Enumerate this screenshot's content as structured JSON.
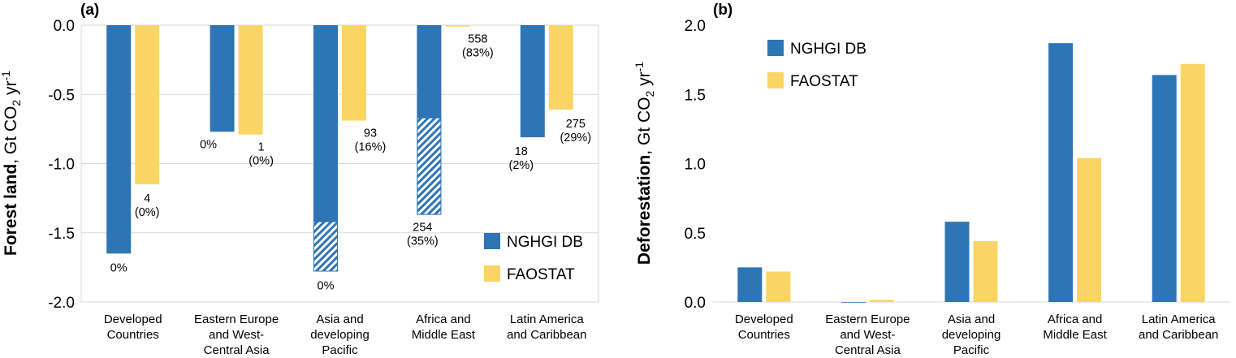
{
  "colors": {
    "nghgi": "#2e75b6",
    "faostat": "#f9d566",
    "grid": "#d9d9d9",
    "hatch": "#2e75b6"
  },
  "chart_data": [
    {
      "panel": "(a)",
      "type": "bar",
      "ylabel_bold": "Forest land",
      "ylabel_unit": ", Gt CO",
      "ylabel_sub": "2",
      "ylabel_tail": " yr",
      "ylabel_sup": "-1",
      "ylim": [
        -2.0,
        0.0
      ],
      "yticks": [
        0.0,
        -0.5,
        -1.0,
        -1.5,
        -2.0
      ],
      "ytick_labels": [
        "0.0",
        "-0.5",
        "-1.0",
        "-1.5",
        "-2.0"
      ],
      "grid": true,
      "legend_position": "bottom-right",
      "categories": [
        [
          "Developed",
          "Countries"
        ],
        [
          "Eastern Europe",
          "and West-",
          "Central Asia"
        ],
        [
          "Asia and",
          "developing",
          "Pacific"
        ],
        [
          "Africa and",
          "Middle East"
        ],
        [
          "Latin America",
          "and Caribbean"
        ]
      ],
      "series": [
        {
          "name": "NGHGI DB",
          "values": [
            -1.65,
            -0.77,
            -1.78,
            -1.37,
            -0.81
          ],
          "hatched_from": [
            null,
            null,
            -1.42,
            -0.67,
            null
          ]
        },
        {
          "name": "FAOSTAT",
          "values": [
            -1.15,
            -0.79,
            -0.69,
            -0.01,
            -0.61
          ]
        }
      ],
      "annotations": [
        {
          "category": 0,
          "series": 0,
          "lines": [
            "0%"
          ]
        },
        {
          "category": 0,
          "series": 1,
          "lines": [
            "4",
            "(0%)"
          ]
        },
        {
          "category": 1,
          "series": 0,
          "lines": [
            "0%"
          ]
        },
        {
          "category": 1,
          "series": 1,
          "lines": [
            "1",
            "(0%)"
          ]
        },
        {
          "category": 2,
          "series": 0,
          "lines": [
            "0%"
          ]
        },
        {
          "category": 2,
          "series": 1,
          "lines": [
            "93",
            "(16%)"
          ]
        },
        {
          "category": 3,
          "series": 0,
          "lines": [
            "254",
            "(35%)"
          ]
        },
        {
          "category": 3,
          "series": 1,
          "lines": [
            "558",
            "(83%)"
          ]
        },
        {
          "category": 4,
          "series": 0,
          "lines": [
            "18",
            "(2%)"
          ]
        },
        {
          "category": 4,
          "series": 1,
          "lines": [
            "275",
            "(29%)"
          ]
        }
      ]
    },
    {
      "panel": "(b)",
      "type": "bar",
      "ylabel_bold": "Deforestation",
      "ylabel_unit": ", Gt CO",
      "ylabel_sub": "2",
      "ylabel_tail": " yr",
      "ylabel_sup": "-1",
      "ylim": [
        0.0,
        2.0
      ],
      "yticks": [
        2.0,
        1.5,
        1.0,
        0.5,
        0.0
      ],
      "ytick_labels": [
        "2.0",
        "1.5",
        "1.0",
        "0.5",
        "0.0"
      ],
      "grid": false,
      "legend_position": "top-left",
      "categories": [
        [
          "Developed",
          "Countries"
        ],
        [
          "Eastern Europe",
          "and West-",
          "Central Asia"
        ],
        [
          "Asia and",
          "developing",
          "Pacific"
        ],
        [
          "Africa and",
          "Middle East"
        ],
        [
          "Latin America",
          "and Caribbean"
        ]
      ],
      "series": [
        {
          "name": "NGHGI DB",
          "values": [
            0.25,
            0.0,
            0.58,
            1.87,
            1.64
          ]
        },
        {
          "name": "FAOSTAT",
          "values": [
            0.22,
            0.015,
            0.44,
            1.04,
            1.72
          ]
        }
      ]
    }
  ]
}
